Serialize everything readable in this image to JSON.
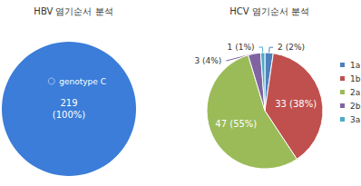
{
  "chart_data": [
    {
      "type": "pie",
      "title": "HBV 염기순서 분석",
      "categories": [
        "genotype C"
      ],
      "values": [
        219
      ],
      "value_labels": [
        "219\n(100%)"
      ],
      "colors": [
        "#3b7dd8"
      ],
      "data_labels": true,
      "legend": "inside"
    },
    {
      "type": "pie",
      "title": "HCV 염기순서 분석",
      "categories": [
        "1a",
        "1b",
        "2a",
        "2b",
        "3a"
      ],
      "values": [
        2,
        33,
        47,
        3,
        1
      ],
      "value_labels": [
        "2 (2%)",
        "33 (38%)",
        "47 (55%)",
        "3 (4%)",
        "1 (1%)"
      ],
      "colors": [
        "#4f81bd",
        "#c0504d",
        "#9bbb59",
        "#8064a2",
        "#4bacc6"
      ],
      "data_labels": true,
      "legend": "right"
    }
  ]
}
